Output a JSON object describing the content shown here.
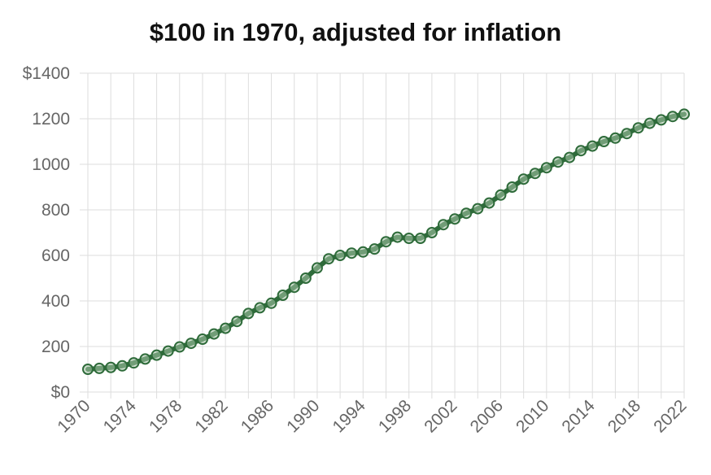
{
  "chart_data": {
    "type": "line",
    "title": "$100 in 1970, adjusted for inflation",
    "xlabel": "",
    "ylabel": "",
    "ylim": [
      0,
      1400
    ],
    "y_ticks": [
      "$0",
      "200",
      "400",
      "600",
      "800",
      "1000",
      "1200",
      "$1400"
    ],
    "y_tick_values": [
      0,
      200,
      400,
      600,
      800,
      1000,
      1200,
      1400
    ],
    "x_ticks": [
      "1970",
      "1974",
      "1978",
      "1982",
      "1986",
      "1990",
      "1994",
      "1998",
      "2002",
      "2006",
      "2010",
      "2014",
      "2018",
      "2022"
    ],
    "grid": true,
    "legend": "none",
    "colors": {
      "line": "#2e6b3a",
      "point_fill": "#a9c6a9",
      "grid": "#dddddd"
    },
    "x": [
      1970,
      1971,
      1972,
      1973,
      1974,
      1975,
      1976,
      1977,
      1978,
      1979,
      1980,
      1981,
      1982,
      1983,
      1984,
      1985,
      1986,
      1987,
      1988,
      1989,
      1990,
      1991,
      1992,
      1993,
      1994,
      1995,
      1996,
      1997,
      1998,
      1999,
      2000,
      2001,
      2002,
      2003,
      2004,
      2005,
      2006,
      2007,
      2008,
      2009,
      2010,
      2011,
      2012,
      2013,
      2014,
      2015,
      2016,
      2017,
      2018,
      2019,
      2020,
      2021,
      2022
    ],
    "values": [
      100,
      104,
      108,
      115,
      128,
      145,
      162,
      180,
      198,
      214,
      232,
      255,
      280,
      310,
      345,
      370,
      390,
      425,
      460,
      500,
      545,
      585,
      600,
      610,
      615,
      628,
      660,
      680,
      675,
      675,
      700,
      735,
      760,
      785,
      805,
      830,
      865,
      900,
      935,
      960,
      985,
      1010,
      1030,
      1060,
      1080,
      1100,
      1115,
      1135,
      1160,
      1180,
      1195,
      1210,
      1220
    ]
  }
}
